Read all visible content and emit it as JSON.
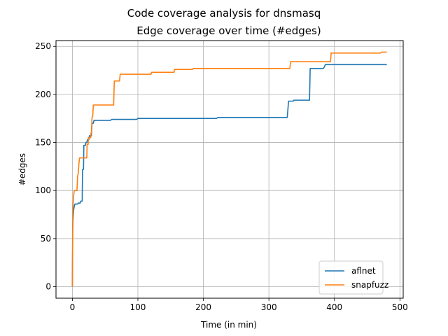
{
  "chart_data": {
    "type": "line",
    "suptitle": "Code coverage analysis for dnsmasq",
    "title": "Edge coverage over time (#edges)",
    "xlabel": "Time (in min)",
    "ylabel": "#edges",
    "xlim": [
      -25,
      505
    ],
    "ylim": [
      -12,
      256
    ],
    "xticks": [
      0,
      100,
      200,
      300,
      400,
      500
    ],
    "yticks": [
      0,
      50,
      100,
      150,
      200,
      250
    ],
    "grid": true,
    "legend": "lower-right",
    "series": [
      {
        "name": "aflnet",
        "color": "#1f77b4",
        "points": [
          [
            0,
            0
          ],
          [
            0.5,
            60
          ],
          [
            1,
            70
          ],
          [
            2,
            80
          ],
          [
            3,
            84
          ],
          [
            4,
            86
          ],
          [
            8,
            86
          ],
          [
            9,
            87
          ],
          [
            12,
            87
          ],
          [
            13,
            89
          ],
          [
            15,
            89
          ],
          [
            15.5,
            122
          ],
          [
            17,
            122
          ],
          [
            17.5,
            147
          ],
          [
            20,
            147
          ],
          [
            20.5,
            150
          ],
          [
            22,
            150
          ],
          [
            23,
            153
          ],
          [
            25,
            153
          ],
          [
            26,
            157
          ],
          [
            29,
            157
          ],
          [
            30,
            170
          ],
          [
            32,
            170
          ],
          [
            33,
            173
          ],
          [
            58,
            173
          ],
          [
            60,
            174
          ],
          [
            98,
            174
          ],
          [
            100,
            175
          ],
          [
            220,
            175
          ],
          [
            222,
            176
          ],
          [
            328,
            176
          ],
          [
            330,
            193
          ],
          [
            337,
            193
          ],
          [
            338,
            194
          ],
          [
            362,
            194
          ],
          [
            363,
            227
          ],
          [
            383,
            227
          ],
          [
            385,
            229
          ],
          [
            386,
            231
          ],
          [
            480,
            231
          ]
        ]
      },
      {
        "name": "snapfuzz",
        "color": "#ff7f0e",
        "points": [
          [
            0,
            0
          ],
          [
            0.5,
            60
          ],
          [
            1,
            85
          ],
          [
            2,
            95
          ],
          [
            3,
            100
          ],
          [
            7,
            100
          ],
          [
            8,
            115
          ],
          [
            9,
            118
          ],
          [
            10,
            128
          ],
          [
            11,
            134
          ],
          [
            22,
            134
          ],
          [
            22.5,
            148
          ],
          [
            24,
            148
          ],
          [
            24.5,
            155
          ],
          [
            28,
            155
          ],
          [
            28.5,
            160
          ],
          [
            29,
            160
          ],
          [
            30,
            176
          ],
          [
            31,
            177
          ],
          [
            32,
            189
          ],
          [
            63,
            189
          ],
          [
            64,
            214
          ],
          [
            72,
            214
          ],
          [
            73,
            221
          ],
          [
            120,
            221
          ],
          [
            121,
            223
          ],
          [
            155,
            223
          ],
          [
            156,
            226
          ],
          [
            183,
            226
          ],
          [
            185,
            227
          ],
          [
            332,
            227
          ],
          [
            333,
            234
          ],
          [
            394,
            234
          ],
          [
            395,
            243
          ],
          [
            470,
            243
          ],
          [
            472,
            244
          ],
          [
            480,
            244
          ]
        ]
      }
    ]
  }
}
